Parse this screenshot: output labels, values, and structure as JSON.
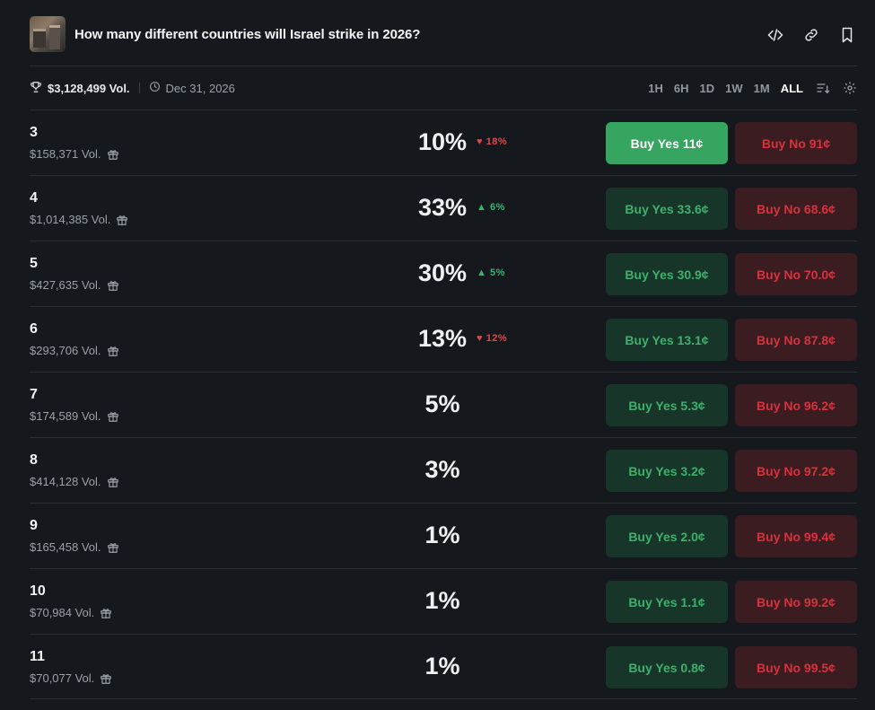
{
  "header": {
    "title": "How many different countries will Israel strike in 2026?",
    "icons": [
      "code-icon",
      "link-icon",
      "bookmark-icon"
    ]
  },
  "meta": {
    "volume": "$3,128,499 Vol.",
    "end_date": "Dec 31, 2026",
    "ranges": [
      "1H",
      "6H",
      "1D",
      "1W",
      "1M",
      "ALL"
    ],
    "active_range": "ALL"
  },
  "colors": {
    "yes_primary": "#35a55f",
    "yes": "#3db16c",
    "no": "#d9323d",
    "up": "#3cb371",
    "down": "#e0474c"
  },
  "outcomes": [
    {
      "label": "3",
      "volume": "$158,371 Vol.",
      "pct": "10%",
      "change": "18%",
      "dir": "down",
      "yes": "Buy Yes 11¢",
      "no": "Buy No 91¢"
    },
    {
      "label": "4",
      "volume": "$1,014,385 Vol.",
      "pct": "33%",
      "change": "6%",
      "dir": "up",
      "yes": "Buy Yes 33.6¢",
      "no": "Buy No 68.6¢"
    },
    {
      "label": "5",
      "volume": "$427,635 Vol.",
      "pct": "30%",
      "change": "5%",
      "dir": "up",
      "yes": "Buy Yes 30.9¢",
      "no": "Buy No 70.0¢"
    },
    {
      "label": "6",
      "volume": "$293,706 Vol.",
      "pct": "13%",
      "change": "12%",
      "dir": "down",
      "yes": "Buy Yes 13.1¢",
      "no": "Buy No 87.8¢"
    },
    {
      "label": "7",
      "volume": "$174,589 Vol.",
      "pct": "5%",
      "change": "",
      "dir": "",
      "yes": "Buy Yes 5.3¢",
      "no": "Buy No 96.2¢"
    },
    {
      "label": "8",
      "volume": "$414,128 Vol.",
      "pct": "3%",
      "change": "",
      "dir": "",
      "yes": "Buy Yes 3.2¢",
      "no": "Buy No 97.2¢"
    },
    {
      "label": "9",
      "volume": "$165,458 Vol.",
      "pct": "1%",
      "change": "",
      "dir": "",
      "yes": "Buy Yes 2.0¢",
      "no": "Buy No 99.4¢"
    },
    {
      "label": "10",
      "volume": "$70,984 Vol.",
      "pct": "1%",
      "change": "",
      "dir": "",
      "yes": "Buy Yes 1.1¢",
      "no": "Buy No 99.2¢"
    },
    {
      "label": "11",
      "volume": "$70,077 Vol.",
      "pct": "1%",
      "change": "",
      "dir": "",
      "yes": "Buy Yes 0.8¢",
      "no": "Buy No 99.5¢"
    }
  ]
}
